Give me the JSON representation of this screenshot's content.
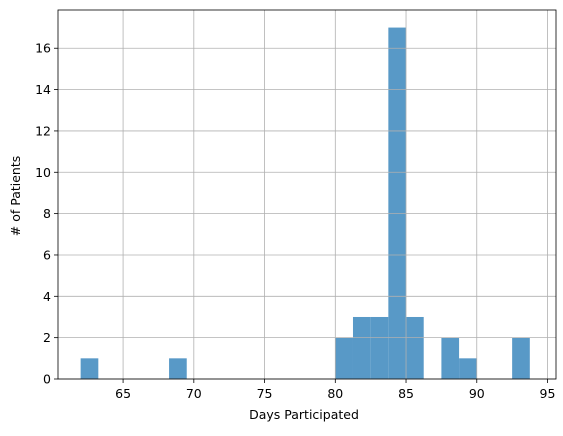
{
  "chart_data": {
    "type": "bar",
    "title": "",
    "xlabel": "Days Participated",
    "ylabel": "# of Patients",
    "xlim": [
      60.4,
      95.6
    ],
    "ylim": [
      0,
      17.85
    ],
    "x_ticks": [
      65,
      70,
      75,
      80,
      85,
      90,
      95
    ],
    "y_ticks": [
      0,
      2,
      4,
      6,
      8,
      10,
      12,
      14,
      16
    ],
    "grid": true,
    "bar_color": "#5899c7",
    "grid_color": "#b0b0b0",
    "bins": [
      {
        "start": 62.0,
        "end": 63.25,
        "count": 1
      },
      {
        "start": 68.25,
        "end": 69.5,
        "count": 1
      },
      {
        "start": 80.0,
        "end": 81.25,
        "count": 2
      },
      {
        "start": 81.25,
        "end": 82.5,
        "count": 3
      },
      {
        "start": 82.5,
        "end": 83.75,
        "count": 3
      },
      {
        "start": 83.75,
        "end": 85.0,
        "count": 17
      },
      {
        "start": 85.0,
        "end": 86.25,
        "count": 3
      },
      {
        "start": 87.5,
        "end": 88.75,
        "count": 2
      },
      {
        "start": 88.75,
        "end": 90.0,
        "count": 1
      },
      {
        "start": 92.5,
        "end": 93.75,
        "count": 2
      }
    ]
  }
}
